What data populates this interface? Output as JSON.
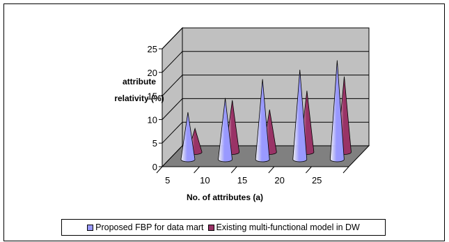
{
  "chart_data": {
    "type": "bar",
    "style": "3d-cone",
    "categories": [
      "5",
      "10",
      "15",
      "20",
      "25"
    ],
    "series": [
      {
        "name": "Proposed FBP for data mart",
        "values": [
          10,
          13,
          17,
          19,
          21
        ],
        "color": "#9999FF"
      },
      {
        "name": "Existing multi-functional model in DW",
        "values": [
          5,
          11,
          9,
          13,
          16
        ],
        "color": "#993366"
      }
    ],
    "ylabel_lines": [
      "attribute",
      "relativity (%)"
    ],
    "xlabel": "No. of attributes (a)",
    "ylim": [
      0,
      25
    ],
    "yticks": [
      "0",
      "5",
      "10",
      "15",
      "20",
      "25"
    ],
    "grid": true,
    "legend_position": "bottom"
  },
  "colors": {
    "wall": "#C0C0C0",
    "floor": "#808080",
    "gridline": "#000000"
  }
}
